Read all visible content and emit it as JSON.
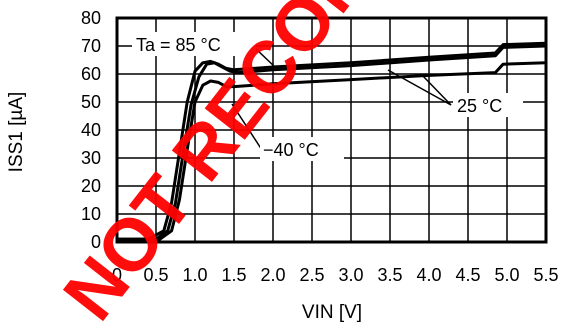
{
  "chart_data": {
    "type": "line",
    "xlabel": "VIN [V]",
    "ylabel": "ISS1 [µA]",
    "xlim": [
      0,
      5.5
    ],
    "ylim": [
      0,
      80
    ],
    "xticks": [
      "0",
      "0.5",
      "1.0",
      "1.5",
      "2.0",
      "2.5",
      "3.0",
      "3.5",
      "4.0",
      "4.5",
      "5.0",
      "5.5"
    ],
    "yticks": [
      "0",
      "10",
      "20",
      "30",
      "40",
      "50",
      "60",
      "70",
      "80"
    ],
    "grid": true,
    "annotations": [
      "Ta = 85 °C",
      "25 °C",
      "−40 °C"
    ],
    "series": [
      {
        "name": "Ta = 85 °C",
        "x": [
          0,
          0.4,
          0.6,
          0.7,
          0.8,
          0.9,
          1.0,
          1.1,
          1.2,
          1.3,
          1.4,
          1.5,
          2.0,
          3.0,
          4.0,
          4.85,
          4.95,
          5.5
        ],
        "y": [
          1,
          1,
          4,
          14,
          32,
          50,
          61,
          64,
          64.5,
          63.5,
          62,
          61.5,
          62.5,
          64,
          66,
          67.5,
          70.5,
          71
        ]
      },
      {
        "name": "25 °C",
        "x": [
          0,
          0.5,
          0.65,
          0.75,
          0.85,
          0.95,
          1.05,
          1.15,
          1.25,
          1.35,
          1.45,
          1.55,
          2.0,
          3.0,
          4.0,
          4.85,
          4.95,
          5.5
        ],
        "y": [
          1,
          1,
          4,
          14,
          32,
          49,
          59,
          63.5,
          64,
          62.5,
          61,
          60.5,
          61.5,
          63,
          65,
          66.5,
          69.5,
          70
        ]
      },
      {
        "name": "−40 °C",
        "x": [
          0,
          0.55,
          0.7,
          0.8,
          0.9,
          1.0,
          1.1,
          1.2,
          1.3,
          1.4,
          1.5,
          2.0,
          3.0,
          4.0,
          4.85,
          4.95,
          5.5
        ],
        "y": [
          1,
          1,
          4,
          15,
          33,
          50,
          56,
          57.5,
          57,
          55.5,
          55.5,
          56.5,
          58,
          59.5,
          60.5,
          63.5,
          64
        ]
      }
    ]
  },
  "watermark": {
    "text": "NOT RECOMMENDED",
    "color": "#ff0000"
  }
}
